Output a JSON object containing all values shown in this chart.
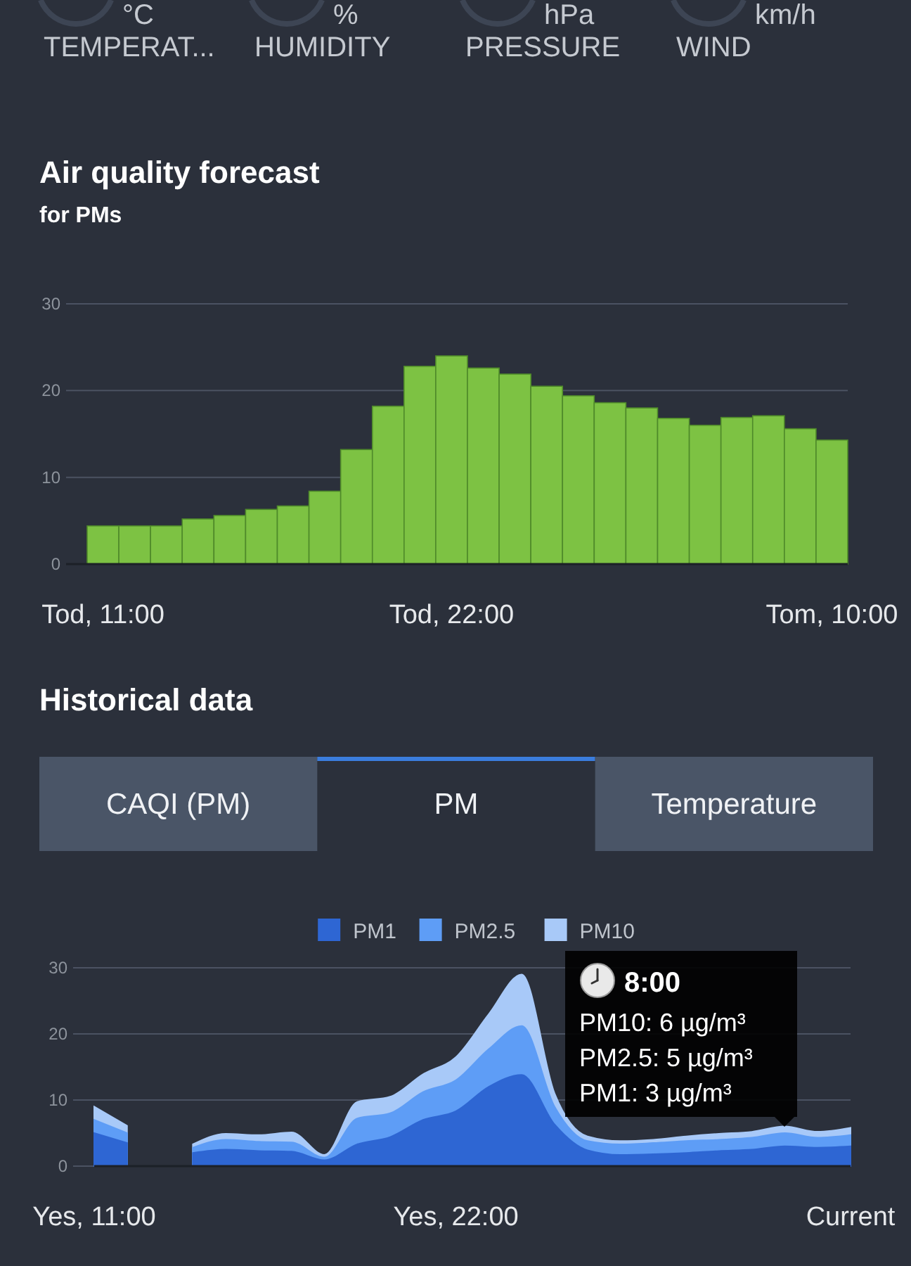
{
  "chart_data": [
    {
      "type": "other",
      "annotations": [
        "°C",
        "TEMPERAT...",
        "%",
        "HUMIDITY",
        "hPa",
        "PRESSURE",
        "km/h",
        "WIND"
      ]
    },
    {
      "type": "bar",
      "title": "Air quality forecast",
      "subtitle": "for PMs",
      "categories": [
        "Tod, 11:00",
        null,
        null,
        null,
        null,
        null,
        null,
        null,
        null,
        null,
        null,
        "Tod, 22:00",
        null,
        null,
        null,
        null,
        null,
        null,
        null,
        null,
        null,
        null,
        null,
        "Tom, 10:00"
      ],
      "values": [
        4.4,
        4.4,
        4.4,
        5.2,
        5.6,
        6.3,
        6.7,
        8.4,
        13.2,
        18.2,
        22.8,
        24.0,
        22.6,
        21.9,
        20.5,
        19.4,
        18.6,
        18.0,
        16.8,
        16.0,
        16.9,
        17.1,
        15.6,
        14.3
      ],
      "color": "#7dc243",
      "ylim": [
        0,
        30
      ],
      "yticks": [
        0,
        10,
        20,
        30
      ],
      "grid": "y"
    },
    {
      "type": "other",
      "title": "Historical data",
      "annotations": [
        "CAQI (PM)",
        "PM",
        "Temperature"
      ]
    },
    {
      "type": "area",
      "categories": [
        "Yes, 11:00",
        null,
        null,
        null,
        null,
        null,
        null,
        null,
        null,
        null,
        null,
        "Yes, 22:00",
        null,
        null,
        null,
        null,
        null,
        null,
        null,
        null,
        null,
        null,
        null,
        "Current"
      ],
      "series": [
        {
          "name": "PM1",
          "color": "#2e66d3",
          "values": [
            5.0,
            3.5,
            null,
            2.0,
            2.5,
            2.3,
            2.2,
            0.9,
            3.3,
            4.4,
            7.0,
            8.3,
            12.0,
            13.8,
            6.3,
            2.4,
            1.7,
            1.8,
            2.0,
            2.3,
            2.5,
            3,
            2.8,
            3.0
          ]
        },
        {
          "name": "PM2.5",
          "color": "#5e9df6",
          "values": [
            7.0,
            5.0,
            null,
            2.8,
            4.0,
            3.7,
            3.6,
            1.3,
            7.2,
            8.0,
            11.2,
            13.0,
            17.7,
            21.2,
            9.0,
            3.8,
            3.3,
            3.5,
            3.8,
            4.0,
            4.3,
            5,
            4.3,
            4.7
          ]
        },
        {
          "name": "PM10",
          "color": "#a8c9f8",
          "values": [
            9.0,
            6.1,
            null,
            3.3,
            4.9,
            4.7,
            5.1,
            1.7,
            9.7,
            10.5,
            13.9,
            16.5,
            23.0,
            29.0,
            11.0,
            4.5,
            3.8,
            4.0,
            4.5,
            4.9,
            5.2,
            6,
            5.2,
            5.8
          ]
        }
      ],
      "ylim": [
        0,
        30
      ],
      "yticks": [
        0,
        10,
        20,
        30
      ],
      "grid": "y",
      "legend": "top",
      "annotations": [
        "8:00",
        "PM10: 6 µg/m³",
        "PM2.5: 5 µg/m³",
        "PM1: 3 µg/m³"
      ]
    }
  ]
}
